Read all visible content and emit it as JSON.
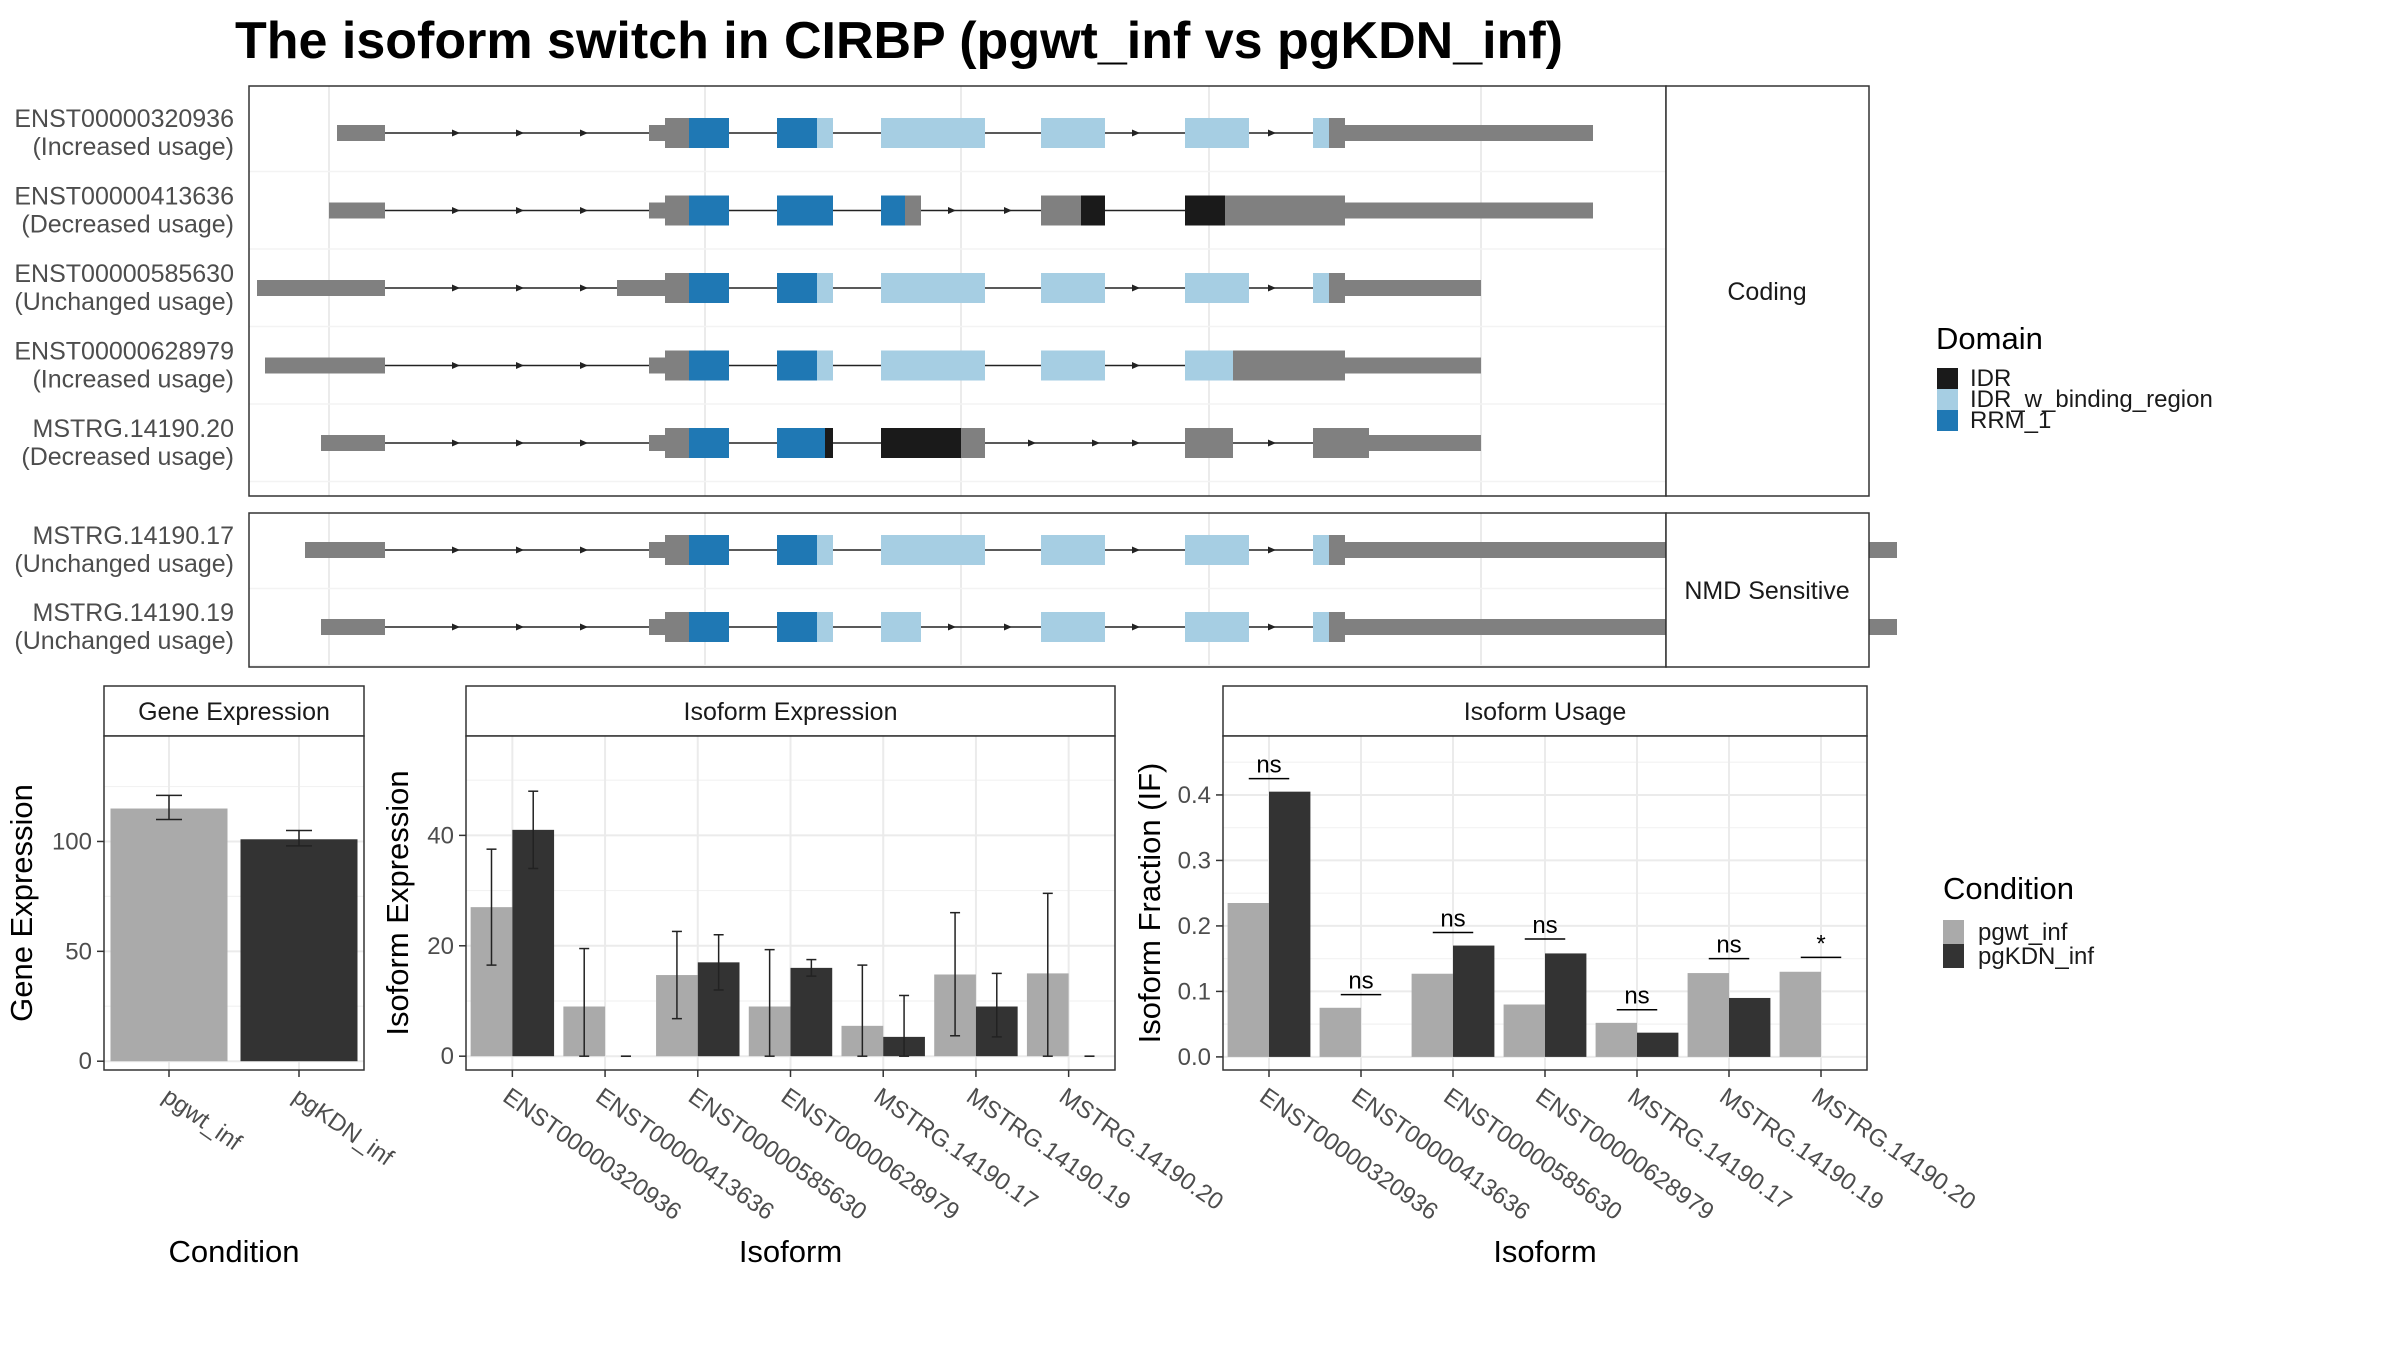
{
  "title": "The isoform switch in CIRBP (pgwt_inf vs pgKDN_inf)",
  "colors": {
    "IDR": "#1a1a1a",
    "IDR_w_binding_region": "#a6cee3",
    "RRM_1": "#1f78b4",
    "noncoding": "#808080",
    "pgwt_inf": "#aaaaaa",
    "pgKDN_inf": "#333333"
  },
  "transcript_panel": {
    "groups": [
      {
        "label": "Coding",
        "rows": [
          {
            "name": "ENST00000320936",
            "usage": "(Increased usage)",
            "exons": [
              [
                0.11,
                0.17,
                "n",
                "s"
              ],
              [
                0.5,
                0.52,
                "n",
                "m"
              ],
              [
                0.52,
                0.55,
                "n",
                "b"
              ],
              [
                0.55,
                0.6,
                "RRM_1",
                "b"
              ],
              [
                0.66,
                0.71,
                "RRM_1",
                "b"
              ],
              [
                0.71,
                0.73,
                "IDR_w_binding_region",
                "b"
              ],
              [
                0.79,
                0.92,
                "IDR_w_binding_region",
                "b"
              ],
              [
                0.99,
                1.07,
                "IDR_w_binding_region",
                "b"
              ],
              [
                1.17,
                1.25,
                "IDR_w_binding_region",
                "b"
              ],
              [
                1.33,
                1.35,
                "IDR_w_binding_region",
                "b"
              ],
              [
                1.35,
                1.37,
                "n",
                "b"
              ],
              [
                1.37,
                1.68,
                "n",
                "m"
              ]
            ],
            "arrows": [
              0.26,
              0.34,
              0.42,
              0.89,
              1.11,
              1.28
            ]
          },
          {
            "name": "ENST00000413636",
            "usage": "(Decreased usage)",
            "exons": [
              [
                0.1,
                0.17,
                "n",
                "s"
              ],
              [
                0.5,
                0.52,
                "n",
                "m"
              ],
              [
                0.52,
                0.55,
                "n",
                "b"
              ],
              [
                0.55,
                0.6,
                "RRM_1",
                "b"
              ],
              [
                0.66,
                0.73,
                "RRM_1",
                "b"
              ],
              [
                0.79,
                0.82,
                "RRM_1",
                "b"
              ],
              [
                0.82,
                0.84,
                "n",
                "b"
              ],
              [
                0.99,
                1.04,
                "n",
                "b"
              ],
              [
                1.04,
                1.07,
                "IDR",
                "b"
              ],
              [
                1.17,
                1.22,
                "IDR",
                "b"
              ],
              [
                1.22,
                1.37,
                "n",
                "b"
              ],
              [
                1.37,
                1.68,
                "n",
                "m"
              ]
            ],
            "arrows": [
              0.26,
              0.34,
              0.42,
              0.88,
              0.95
            ]
          },
          {
            "name": "ENST00000585630",
            "usage": "(Unchanged usage)",
            "exons": [
              [
                0.01,
                0.17,
                "n",
                "s"
              ],
              [
                0.46,
                0.52,
                "n",
                "m"
              ],
              [
                0.52,
                0.55,
                "n",
                "b"
              ],
              [
                0.55,
                0.6,
                "RRM_1",
                "b"
              ],
              [
                0.66,
                0.71,
                "RRM_1",
                "b"
              ],
              [
                0.71,
                0.73,
                "IDR_w_binding_region",
                "b"
              ],
              [
                0.79,
                0.92,
                "IDR_w_binding_region",
                "b"
              ],
              [
                0.99,
                1.07,
                "IDR_w_binding_region",
                "b"
              ],
              [
                1.17,
                1.25,
                "IDR_w_binding_region",
                "b"
              ],
              [
                1.33,
                1.35,
                "IDR_w_binding_region",
                "b"
              ],
              [
                1.35,
                1.37,
                "n",
                "b"
              ],
              [
                1.37,
                1.54,
                "n",
                "m"
              ]
            ],
            "arrows": [
              0.26,
              0.34,
              0.42,
              0.89,
              1.11,
              1.28
            ]
          },
          {
            "name": "ENST00000628979",
            "usage": "(Increased usage)",
            "exons": [
              [
                0.02,
                0.17,
                "n",
                "s"
              ],
              [
                0.5,
                0.52,
                "n",
                "m"
              ],
              [
                0.52,
                0.55,
                "n",
                "b"
              ],
              [
                0.55,
                0.6,
                "RRM_1",
                "b"
              ],
              [
                0.66,
                0.71,
                "RRM_1",
                "b"
              ],
              [
                0.71,
                0.73,
                "IDR_w_binding_region",
                "b"
              ],
              [
                0.79,
                0.92,
                "IDR_w_binding_region",
                "b"
              ],
              [
                0.99,
                1.07,
                "IDR_w_binding_region",
                "b"
              ],
              [
                1.17,
                1.23,
                "IDR_w_binding_region",
                "b"
              ],
              [
                1.23,
                1.37,
                "n",
                "b"
              ],
              [
                1.37,
                1.54,
                "n",
                "m"
              ]
            ],
            "arrows": [
              0.26,
              0.34,
              0.42,
              0.89,
              1.11
            ]
          },
          {
            "name": "MSTRG.14190.20",
            "usage": "(Decreased usage)",
            "exons": [
              [
                0.09,
                0.17,
                "n",
                "s"
              ],
              [
                0.5,
                0.52,
                "n",
                "m"
              ],
              [
                0.52,
                0.55,
                "n",
                "b"
              ],
              [
                0.55,
                0.6,
                "RRM_1",
                "b"
              ],
              [
                0.66,
                0.72,
                "RRM_1",
                "b"
              ],
              [
                0.72,
                0.73,
                "IDR",
                "b"
              ],
              [
                0.79,
                0.89,
                "IDR",
                "b"
              ],
              [
                0.89,
                0.92,
                "n",
                "b"
              ],
              [
                1.17,
                1.23,
                "n",
                "b"
              ],
              [
                1.33,
                1.4,
                "n",
                "b"
              ],
              [
                1.4,
                1.54,
                "n",
                "m"
              ]
            ],
            "arrows": [
              0.26,
              0.34,
              0.42,
              0.98,
              1.06,
              1.11,
              1.28
            ]
          }
        ]
      },
      {
        "label": "NMD Sensitive",
        "rows": [
          {
            "name": "MSTRG.14190.17",
            "usage": "(Unchanged usage)",
            "exons": [
              [
                0.07,
                0.17,
                "n",
                "s"
              ],
              [
                0.5,
                0.52,
                "n",
                "m"
              ],
              [
                0.52,
                0.55,
                "n",
                "b"
              ],
              [
                0.55,
                0.6,
                "RRM_1",
                "b"
              ],
              [
                0.66,
                0.71,
                "RRM_1",
                "b"
              ],
              [
                0.71,
                0.73,
                "IDR_w_binding_region",
                "b"
              ],
              [
                0.79,
                0.92,
                "IDR_w_binding_region",
                "b"
              ],
              [
                0.99,
                1.07,
                "IDR_w_binding_region",
                "b"
              ],
              [
                1.17,
                1.25,
                "IDR_w_binding_region",
                "b"
              ],
              [
                1.33,
                1.35,
                "IDR_w_binding_region",
                "b"
              ],
              [
                1.35,
                1.37,
                "n",
                "b"
              ],
              [
                1.37,
                1.89,
                "n",
                "m"
              ],
              [
                1.97,
                2.06,
                "n",
                "m"
              ]
            ],
            "arrows": [
              0.26,
              0.34,
              0.42,
              0.89,
              1.11,
              1.28
            ]
          },
          {
            "name": "MSTRG.14190.19",
            "usage": "(Unchanged usage)",
            "exons": [
              [
                0.09,
                0.17,
                "n",
                "s"
              ],
              [
                0.5,
                0.52,
                "n",
                "m"
              ],
              [
                0.52,
                0.55,
                "n",
                "b"
              ],
              [
                0.55,
                0.6,
                "RRM_1",
                "b"
              ],
              [
                0.66,
                0.71,
                "RRM_1",
                "b"
              ],
              [
                0.71,
                0.73,
                "IDR_w_binding_region",
                "b"
              ],
              [
                0.79,
                0.84,
                "IDR_w_binding_region",
                "b"
              ],
              [
                0.99,
                1.07,
                "IDR_w_binding_region",
                "b"
              ],
              [
                1.17,
                1.25,
                "IDR_w_binding_region",
                "b"
              ],
              [
                1.33,
                1.35,
                "IDR_w_binding_region",
                "b"
              ],
              [
                1.35,
                1.37,
                "n",
                "b"
              ],
              [
                1.37,
                1.89,
                "n",
                "m"
              ],
              [
                1.97,
                2.06,
                "n",
                "m"
              ]
            ],
            "arrows": [
              0.26,
              0.34,
              0.42,
              0.88,
              0.95,
              1.11,
              1.28
            ]
          }
        ]
      }
    ]
  },
  "legend_domain": {
    "title": "Domain",
    "items": [
      "IDR",
      "IDR_w_binding_region",
      "RRM_1"
    ]
  },
  "legend_condition": {
    "title": "Condition",
    "items": [
      "pgwt_inf",
      "pgKDN_inf"
    ]
  },
  "chart_data": [
    {
      "type": "bar",
      "strip": "Gene Expression",
      "xlabel": "Condition",
      "ylabel": "Gene Expression",
      "ylim": [
        -4,
        148
      ],
      "yticks": [
        0,
        50,
        100
      ],
      "categories": [
        "pgwt_inf",
        "pgKDN_inf"
      ],
      "values": [
        115,
        101
      ],
      "err_low": [
        110,
        98
      ],
      "err_high": [
        121,
        105
      ]
    },
    {
      "type": "bar",
      "strip": "Isoform Expression",
      "xlabel": "Isoform",
      "ylabel": "Isoform Expression",
      "ylim": [
        -2.5,
        58
      ],
      "yticks": [
        0,
        20,
        40
      ],
      "categories": [
        "ENST00000320936",
        "ENST00000413636",
        "ENST00000585630",
        "ENST00000628979",
        "MSTRG.14190.17",
        "MSTRG.14190.19",
        "MSTRG.14190.20"
      ],
      "series": [
        {
          "name": "pgwt_inf",
          "values": [
            27,
            9,
            14.7,
            9,
            5.5,
            14.8,
            15
          ],
          "err_low": [
            16.5,
            0,
            6.8,
            0,
            0,
            3.7,
            0
          ],
          "err_high": [
            37.5,
            19.5,
            22.6,
            19.3,
            16.5,
            26,
            29.5
          ]
        },
        {
          "name": "pgKDN_inf",
          "values": [
            41,
            0,
            17,
            16,
            3.5,
            9,
            0
          ],
          "err_low": [
            34,
            0,
            12,
            14.5,
            0,
            3.5,
            0
          ],
          "err_high": [
            48,
            0,
            22,
            17.5,
            11,
            15,
            0
          ]
        }
      ]
    },
    {
      "type": "bar",
      "strip": "Isoform Usage",
      "xlabel": "Isoform",
      "ylabel": "Isoform Fraction (IF)",
      "ylim": [
        -0.02,
        0.49
      ],
      "yticks": [
        "0.0",
        "0.1",
        "0.2",
        "0.3",
        "0.4"
      ],
      "categories": [
        "ENST00000320936",
        "ENST00000413636",
        "ENST00000585630",
        "ENST00000628979",
        "MSTRG.14190.17",
        "MSTRG.14190.19",
        "MSTRG.14190.20"
      ],
      "series": [
        {
          "name": "pgwt_inf",
          "values": [
            0.235,
            0.075,
            0.127,
            0.08,
            0.052,
            0.128,
            0.13
          ]
        },
        {
          "name": "pgKDN_inf",
          "values": [
            0.405,
            0,
            0.17,
            0.158,
            0.037,
            0.09,
            0
          ]
        }
      ],
      "significance": [
        "ns",
        "ns",
        "ns",
        "ns",
        "ns",
        "ns",
        "*"
      ],
      "sig_y": [
        0.425,
        0.095,
        0.19,
        0.18,
        0.072,
        0.15,
        0.152
      ]
    }
  ]
}
